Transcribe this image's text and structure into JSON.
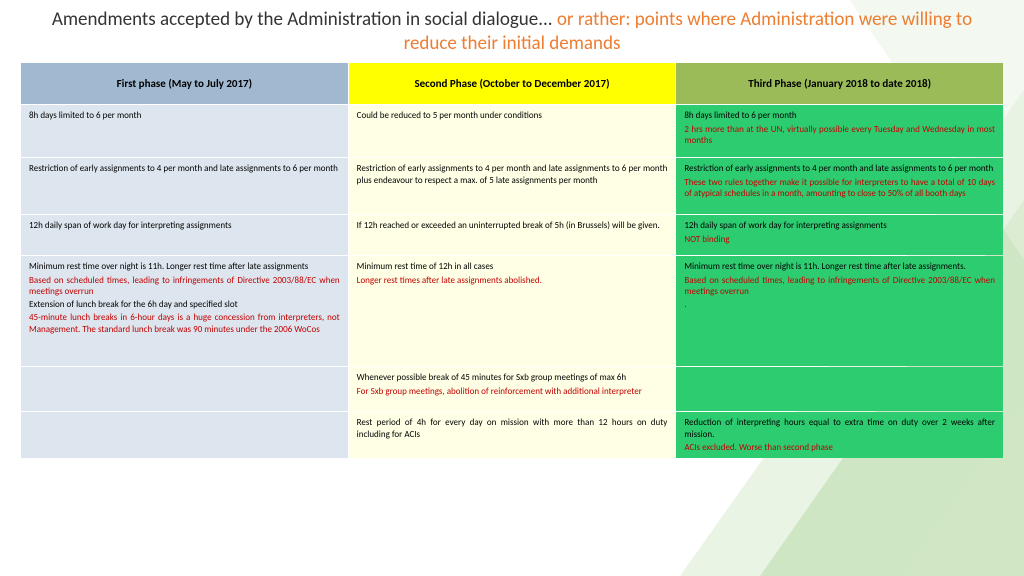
{
  "title": {
    "part1": "Amendments accepted by the Administration  in social dialogue... ",
    "part2": "or rather: points where Administration were willing to reduce their initial demands"
  },
  "colors": {
    "orange": "#ed7d31",
    "col1_head": "#a1b8d1",
    "col2_head": "#ffff00",
    "col3_head": "#9bbb59",
    "col1_cell": "#dde6ef",
    "col2_cell": "#ffffe5",
    "col3_cell": "#2ecc71",
    "red": "#c00000"
  },
  "headers": {
    "col1": "First phase (May to July 2017)",
    "col2": "Second Phase  (October to December 2017)",
    "col3": "Third Phase  (January 2018 to date 2018)"
  },
  "rows": [
    {
      "c1": [
        {
          "t": "8h days limited to 6 per month",
          "red": false
        }
      ],
      "c2": [
        {
          "t": "Could be reduced to 5 per month under conditions",
          "red": false
        }
      ],
      "c3": [
        {
          "t": "8h days limited to 6 per month",
          "red": false
        },
        {
          "t": "2 hrs more than at the UN, virtually possible every Tuesday and Wednesday in most months",
          "red": true
        }
      ]
    },
    {
      "c1": [
        {
          "t": "Restriction of early assignments to 4 per month and late assignments to 6 per month",
          "red": false
        }
      ],
      "c2": [
        {
          "t": "Restriction of early assignments to 4 per month and late assignments to 6 per month plus endeavour to respect a max. of 5 late assignments per month",
          "red": false
        }
      ],
      "c3": [
        {
          "t": "Restriction of early assignments to 4 per month and late assignments to 6 per month",
          "red": false
        },
        {
          "t": "These two rules together make it possible for interpreters to have a total of 10 days of atypical schedules in a month, amounting to close to 50% of all booth days",
          "red": true
        }
      ]
    },
    {
      "c1": [
        {
          "t": "12h daily span of work day for interpreting assignments",
          "red": false
        }
      ],
      "c2": [
        {
          "t": "If 12h reached or exceeded an uninterrupted break of 5h (in Brussels) will be given.",
          "red": false
        }
      ],
      "c3": [
        {
          "t": "12h daily span of work day for interpreting assignments",
          "red": false
        },
        {
          "t": "NOT binding",
          "red": true
        }
      ]
    },
    {
      "c1": [
        {
          "t": "Minimum rest time over night is 11h. Longer rest time after late assignments",
          "red": false
        },
        {
          "t": "Based on scheduled times, leading to infringements of Directive 2003/88/EC when meetings overrun",
          "red": true
        },
        {
          "t": "Extension of lunch break for the 6h day and specified slot",
          "red": false
        },
        {
          "t": "45-minute lunch breaks in 6-hour days is a huge concession from interpreters, not Management. The standard lunch break was 90 minutes under the 2006 WoCos",
          "red": true
        }
      ],
      "c2": [
        {
          "t": "Minimum rest time of 12h in all cases",
          "red": false
        },
        {
          "t": "Longer rest times after late assignments abolished.",
          "red": true
        }
      ],
      "c3": [
        {
          "t": "Minimum rest time over night is 11h. Longer rest time after late assignments.",
          "red": false
        },
        {
          "t": "Based on scheduled times, leading to infringements of Directive 2003/88/EC when meetings overrun",
          "red": true
        },
        {
          "t": ".",
          "red": true
        }
      ]
    },
    {
      "c1": [],
      "c2": [
        {
          "t": "Whenever possible break of 45 minutes for Sxb group meetings of max 6h",
          "red": false
        },
        {
          "t": "For Sxb group meetings, abolition of reinforcement with additional interpreter",
          "red": true
        }
      ],
      "c3": []
    },
    {
      "c1": [],
      "c2": [
        {
          "t": "Rest period of 4h for every day on mission with more than 12 hours on duty including for ACIs",
          "red": false
        }
      ],
      "c3": [
        {
          "t": "Reduction of interpreting hours equal to extra time on duty over 2 weeks after mission.",
          "red": false
        },
        {
          "t": "ACIs excluded. Worse than second phase",
          "red": true
        }
      ]
    }
  ]
}
